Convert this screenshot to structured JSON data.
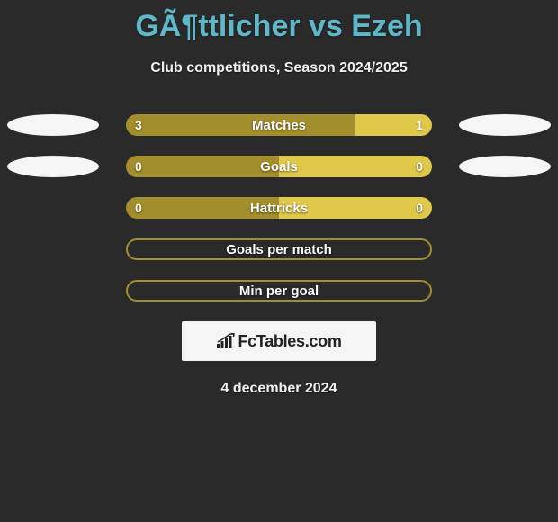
{
  "title": "GÃ¶ttlicher vs Ezeh",
  "subtitle": "Club competitions, Season 2024/2025",
  "date": "4 december 2024",
  "branding": {
    "text": "FcTables.com"
  },
  "colors": {
    "title": "#5fb8c9",
    "left_bar": "#a38e2c",
    "right_bar": "#e0c84a",
    "outline_empty": "#a38e2c",
    "background": "#2a2a2a",
    "avatar": "#f5f5f5",
    "branding_bg": "#f5f5f5"
  },
  "rows": [
    {
      "label": "Matches",
      "left_value": "3",
      "right_value": "1",
      "left_pct": 75,
      "right_pct": 25,
      "left_color": "#a38e2c",
      "right_color": "#e0c84a",
      "show_avatars": true,
      "outline_only": false
    },
    {
      "label": "Goals",
      "left_value": "0",
      "right_value": "0",
      "left_pct": 50,
      "right_pct": 50,
      "left_color": "#a38e2c",
      "right_color": "#e0c84a",
      "show_avatars": true,
      "outline_only": false
    },
    {
      "label": "Hattricks",
      "left_value": "0",
      "right_value": "0",
      "left_pct": 50,
      "right_pct": 50,
      "left_color": "#a38e2c",
      "right_color": "#e0c84a",
      "show_avatars": false,
      "outline_only": false
    },
    {
      "label": "Goals per match",
      "left_value": "",
      "right_value": "",
      "left_pct": 0,
      "right_pct": 0,
      "left_color": "#a38e2c",
      "right_color": "#e0c84a",
      "show_avatars": false,
      "outline_only": true,
      "outline_color": "#a38e2c"
    },
    {
      "label": "Min per goal",
      "left_value": "",
      "right_value": "",
      "left_pct": 0,
      "right_pct": 0,
      "left_color": "#a38e2c",
      "right_color": "#e0c84a",
      "show_avatars": false,
      "outline_only": true,
      "outline_color": "#a38e2c"
    }
  ]
}
